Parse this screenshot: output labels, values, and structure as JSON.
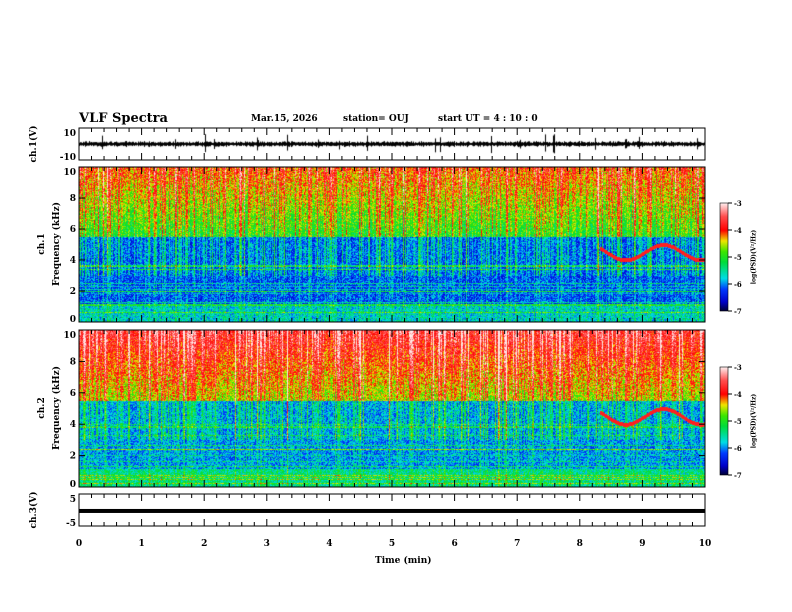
{
  "header": {
    "title": "VLF Spectra",
    "date": "Mar.15, 2026",
    "station": "station= OUJ",
    "start_ut": "start  UT =   4 : 10 : 0"
  },
  "chart_data": [
    {
      "type": "line",
      "name": "ch1-waveform",
      "ylabel": "ch.1(V)",
      "ylim": [
        -10,
        10
      ],
      "yticks": [
        "10",
        "-10"
      ],
      "baseline": 0,
      "xlim": [
        0,
        10
      ]
    },
    {
      "type": "heatmap",
      "name": "ch1-spectrogram",
      "ylabel": "ch.1\nFrequency  (kHz)",
      "ylabel_top": "ch.1",
      "ylabel_bottom": "Frequency  (kHz)",
      "ylim": [
        0,
        10
      ],
      "yticks": [
        "0",
        "2",
        "4",
        "6",
        "8",
        "10"
      ],
      "xlim": [
        0,
        10
      ],
      "colorbar": {
        "label": "log(PSD)(V²/Hz)",
        "range": [
          -7,
          -3
        ],
        "ticks": [
          "-3",
          "-4",
          "-5",
          "-6",
          "-7"
        ]
      }
    },
    {
      "type": "heatmap",
      "name": "ch2-spectrogram",
      "ylabel_top": "ch.2",
      "ylabel_bottom": "Frequency  (kHz)",
      "ylim": [
        0,
        10
      ],
      "yticks": [
        "0",
        "2",
        "4",
        "6",
        "8",
        "10"
      ],
      "xlim": [
        0,
        10
      ],
      "colorbar": {
        "label": "log(PSD)(V²/Hz)",
        "range": [
          -7,
          -3
        ],
        "ticks": [
          "-3",
          "-4",
          "-5",
          "-6",
          "-7"
        ]
      }
    },
    {
      "type": "line",
      "name": "ch3-waveform",
      "ylabel": "ch.3(V)",
      "ylim": [
        -5,
        5
      ],
      "yticks": [
        "5",
        "-5"
      ],
      "baseline": -0.3,
      "xlim": [
        0,
        10
      ]
    }
  ],
  "xaxis": {
    "label": "Time  (min)",
    "ticks": [
      "0",
      "1",
      "2",
      "3",
      "4",
      "5",
      "6",
      "7",
      "8",
      "9",
      "10"
    ],
    "range": [
      0,
      10
    ]
  }
}
